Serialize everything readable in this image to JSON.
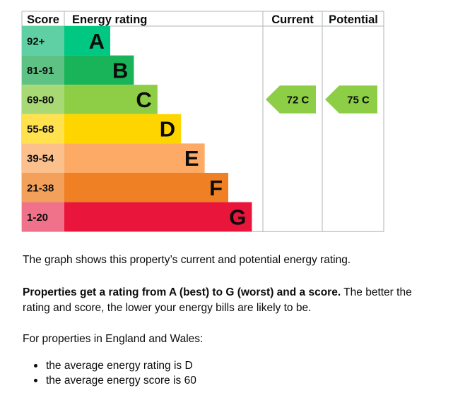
{
  "chart_data": {
    "type": "bar",
    "headers": {
      "score": "Score",
      "rating": "Energy rating",
      "current": "Current",
      "potential": "Potential"
    },
    "bands": [
      {
        "letter": "A",
        "range": "92+",
        "color": "#00c781",
        "light": "#5ed0a4"
      },
      {
        "letter": "B",
        "range": "81-91",
        "color": "#19b459",
        "light": "#5ec284"
      },
      {
        "letter": "C",
        "range": "69-80",
        "color": "#8dce46",
        "light": "#a9d974"
      },
      {
        "letter": "D",
        "range": "55-68",
        "color": "#ffd500",
        "light": "#ffe24d"
      },
      {
        "letter": "E",
        "range": "39-54",
        "color": "#fcaa65",
        "light": "#fcc08d"
      },
      {
        "letter": "F",
        "range": "21-38",
        "color": "#ef8023",
        "light": "#f3a05a"
      },
      {
        "letter": "G",
        "range": "1-20",
        "color": "#e9153b",
        "light": "#f0718a"
      }
    ],
    "current": {
      "score": 72,
      "band": "C",
      "label": "72  C"
    },
    "potential": {
      "score": 75,
      "band": "C",
      "label": "75  C"
    }
  },
  "text": {
    "intro": "The graph shows this property’s current and potential energy rating.",
    "rating_bold": "Properties get a rating from A (best) to G (worst) and a score.",
    "rating_rest": " The better the rating and score, the lower your energy bills are likely to be.",
    "region": "For properties in England and Wales:",
    "bullets": [
      "the average energy rating is D",
      "the average energy score is 60"
    ]
  }
}
